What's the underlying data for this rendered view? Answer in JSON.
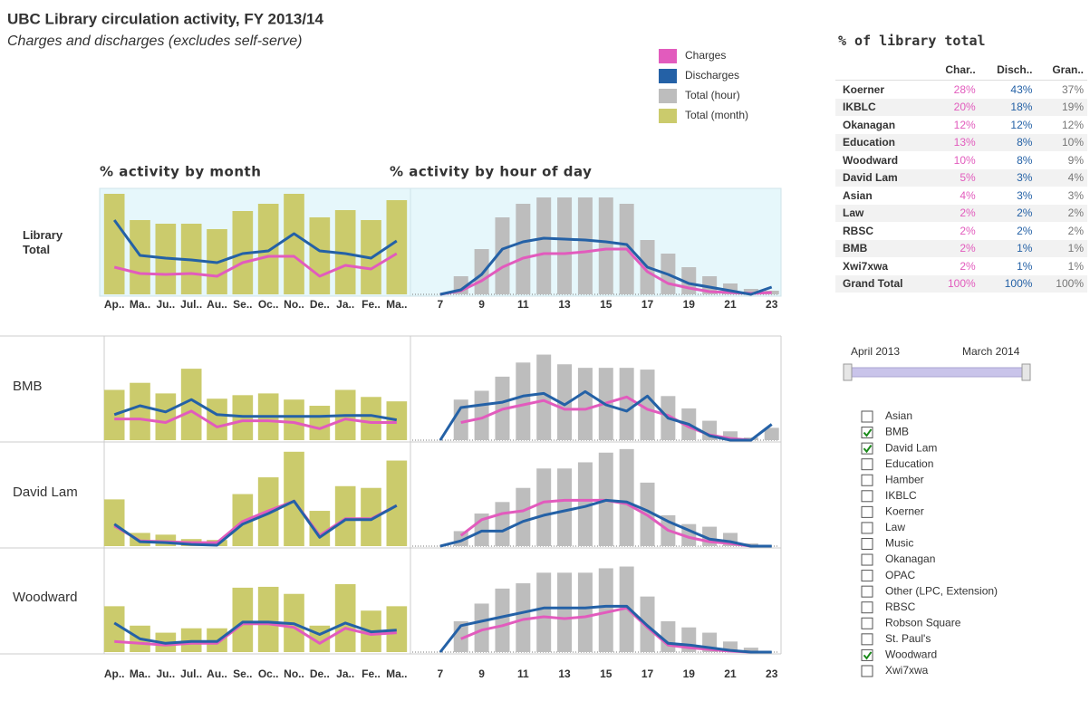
{
  "header": {
    "title": "UBC Library circulation activity, FY 2013/14",
    "subtitle": "Charges and discharges (excludes self-serve)"
  },
  "facets": [
    "Library Total",
    "BMB",
    "David Lam",
    "Woodward"
  ],
  "chart_data": [
    {
      "type": "combo",
      "title": "% activity by month",
      "categories": [
        "Ap..",
        "Ma..",
        "Ju..",
        "Jul..",
        "Au..",
        "Se..",
        "Oc..",
        "No..",
        "De..",
        "Ja..",
        "Fe..",
        "Ma.."
      ],
      "ylim": [
        0,
        11.5
      ],
      "series": [
        {
          "name": "Total (month)",
          "mark": "bar",
          "color": "#cbcb6c",
          "values": [
            [
              11.1,
              8.2,
              7.8,
              7.8,
              7.2,
              9.2,
              10.0,
              11.1,
              8.5,
              9.3,
              8.2,
              10.4
            ],
            [
              5.7,
              6.5,
              5.3,
              8.1,
              4.7,
              5.1,
              5.3,
              4.6,
              3.9,
              5.7,
              4.9,
              4.4
            ],
            [
              5.3,
              1.5,
              1.3,
              0.8,
              0.7,
              5.9,
              7.8,
              10.7,
              4.0,
              6.8,
              6.6,
              9.7
            ],
            [
              5.2,
              3.0,
              2.2,
              2.7,
              2.7,
              7.3,
              7.4,
              6.6,
              3.0,
              7.7,
              4.7,
              5.2
            ]
          ]
        },
        {
          "name": "Charges",
          "mark": "line",
          "color": "#e25bbd",
          "values": [
            [
              3.0,
              2.3,
              2.2,
              2.3,
              2.0,
              3.5,
              4.2,
              4.2,
              2.0,
              3.2,
              2.8,
              4.5
            ],
            [
              2.4,
              2.4,
              2.0,
              3.3,
              1.5,
              2.2,
              2.2,
              2.0,
              1.3,
              2.4,
              2.0,
              2.0
            ],
            [
              2.3,
              0.6,
              0.5,
              0.4,
              0.4,
              2.8,
              4.0,
              5.1,
              1.2,
              3.1,
              3.1,
              4.6
            ],
            [
              1.2,
              1.0,
              0.8,
              1.0,
              1.0,
              3.2,
              3.2,
              2.8,
              1.0,
              2.7,
              2.0,
              2.2
            ]
          ]
        },
        {
          "name": "Discharges",
          "mark": "line",
          "color": "#2461a6",
          "values": [
            [
              8.2,
              4.3,
              4.0,
              3.8,
              3.5,
              4.5,
              4.8,
              6.7,
              4.8,
              4.5,
              4.0,
              5.9
            ],
            [
              2.9,
              3.9,
              3.2,
              4.6,
              2.9,
              2.7,
              2.7,
              2.7,
              2.7,
              2.8,
              2.8,
              2.3
            ],
            [
              2.5,
              0.5,
              0.4,
              0.2,
              0.1,
              2.5,
              3.7,
              5.1,
              1.0,
              3.0,
              3.0,
              4.6
            ],
            [
              3.3,
              1.5,
              1.0,
              1.2,
              1.2,
              3.4,
              3.4,
              3.2,
              2.0,
              3.3,
              2.3,
              2.5
            ]
          ]
        }
      ]
    },
    {
      "type": "combo",
      "title": "% activity by hour of day",
      "x": [
        7,
        8,
        9,
        10,
        11,
        12,
        13,
        14,
        15,
        16,
        17,
        18,
        19,
        20,
        21,
        22,
        23
      ],
      "xlim": [
        5.65,
        23.45
      ],
      "xticks": [
        7,
        9,
        11,
        13,
        15,
        17,
        19,
        21,
        23
      ],
      "ylim": [
        0,
        11.5
      ],
      "series": [
        {
          "name": "Total (hour)",
          "mark": "bar",
          "color": "#bdbdbd",
          "values": [
            [
              null,
              2.0,
              5.0,
              8.5,
              10.0,
              10.7,
              10.7,
              10.7,
              10.7,
              10.0,
              6.0,
              4.5,
              3.0,
              2.0,
              1.2,
              0.6,
              0.4
            ],
            [
              null,
              4.6,
              5.6,
              7.2,
              8.8,
              9.7,
              8.6,
              8.2,
              8.2,
              8.2,
              8.0,
              5.0,
              3.6,
              2.2,
              1.0,
              0.3,
              1.4
            ],
            [
              null,
              1.7,
              3.7,
              5.0,
              6.6,
              8.8,
              8.8,
              9.5,
              10.6,
              11.0,
              7.2,
              3.5,
              2.5,
              2.2,
              1.5,
              0.3,
              null
            ],
            [
              null,
              3.5,
              5.5,
              7.2,
              7.8,
              9.0,
              9.0,
              9.0,
              9.5,
              9.7,
              6.3,
              3.5,
              2.8,
              2.2,
              1.2,
              0.5,
              null
            ]
          ]
        },
        {
          "mark": "line",
          "color": "#e25bbd",
          "values": [
            [
              0,
              0.4,
              1.5,
              3.0,
              4.0,
              4.5,
              4.5,
              4.7,
              5.0,
              5.0,
              2.5,
              1.2,
              0.7,
              0.3,
              0.2,
              0.1,
              0.2
            ],
            [
              null,
              2.0,
              2.5,
              3.5,
              4.0,
              4.5,
              3.5,
              3.5,
              4.2,
              4.9,
              3.5,
              2.8,
              1.5,
              0.6,
              0.2,
              0,
              null
            ],
            [
              null,
              1.2,
              3.0,
              3.7,
              4.0,
              5.0,
              5.2,
              5.2,
              5.2,
              4.8,
              3.5,
              1.8,
              1.0,
              0.5,
              0.3,
              0,
              null
            ],
            [
              null,
              1.5,
              2.5,
              3.0,
              3.7,
              4.0,
              3.8,
              4.0,
              4.5,
              5.0,
              2.8,
              0.8,
              0.5,
              0.3,
              0.1,
              0,
              null
            ]
          ]
        },
        {
          "mark": "line",
          "color": "#2461a6",
          "values": [
            [
              0,
              0.5,
              2.2,
              5.0,
              5.8,
              6.2,
              6.1,
              6.0,
              5.8,
              5.5,
              3.0,
              2.2,
              1.2,
              0.8,
              0.4,
              0,
              0.8
            ],
            [
              0,
              3.7,
              4.0,
              4.3,
              5.0,
              5.3,
              4.0,
              5.5,
              4.0,
              3.3,
              5.0,
              2.5,
              1.8,
              0.5,
              0,
              0,
              1.8
            ],
            [
              0,
              0.6,
              1.7,
              1.7,
              2.8,
              3.5,
              4.0,
              4.5,
              5.2,
              5.0,
              4.0,
              2.8,
              1.8,
              0.8,
              0.5,
              0,
              0
            ],
            [
              0,
              3.0,
              3.5,
              4.0,
              4.5,
              5.0,
              5.0,
              5.0,
              5.2,
              5.2,
              3.0,
              1.0,
              0.8,
              0.5,
              0.2,
              0,
              0
            ]
          ]
        }
      ]
    }
  ],
  "table": {
    "title": "% of library total",
    "columns": [
      "Char..",
      "Disch..",
      "Gran.."
    ],
    "rows": [
      [
        "Koerner",
        "28%",
        "43%",
        "37%"
      ],
      [
        "IKBLC",
        "20%",
        "18%",
        "19%"
      ],
      [
        "Okanagan",
        "12%",
        "12%",
        "12%"
      ],
      [
        "Education",
        "13%",
        "8%",
        "10%"
      ],
      [
        "Woodward",
        "10%",
        "8%",
        "9%"
      ],
      [
        "David Lam",
        "5%",
        "3%",
        "4%"
      ],
      [
        "Asian",
        "4%",
        "3%",
        "3%"
      ],
      [
        "Law",
        "2%",
        "2%",
        "2%"
      ],
      [
        "RBSC",
        "2%",
        "2%",
        "2%"
      ],
      [
        "BMB",
        "2%",
        "1%",
        "1%"
      ],
      [
        "Xwi7xwa",
        "2%",
        "1%",
        "1%"
      ],
      [
        "Grand Total",
        "100%",
        "100%",
        "100%"
      ]
    ]
  },
  "date_filter": {
    "start": "April 2013",
    "end": "March 2014"
  },
  "library_filter": [
    {
      "label": "Asian",
      "checked": false
    },
    {
      "label": "BMB",
      "checked": true
    },
    {
      "label": "David Lam",
      "checked": true
    },
    {
      "label": "Education",
      "checked": false
    },
    {
      "label": "Hamber",
      "checked": false
    },
    {
      "label": "IKBLC",
      "checked": false
    },
    {
      "label": "Koerner",
      "checked": false
    },
    {
      "label": "Law",
      "checked": false
    },
    {
      "label": "Music",
      "checked": false
    },
    {
      "label": "Okanagan",
      "checked": false
    },
    {
      "label": "OPAC",
      "checked": false
    },
    {
      "label": "Other (LPC, Extension)",
      "checked": false
    },
    {
      "label": "RBSC",
      "checked": false
    },
    {
      "label": "Robson Square",
      "checked": false
    },
    {
      "label": "St. Paul's",
      "checked": false
    },
    {
      "label": "Woodward",
      "checked": true
    },
    {
      "label": "Xwi7xwa",
      "checked": false
    }
  ]
}
